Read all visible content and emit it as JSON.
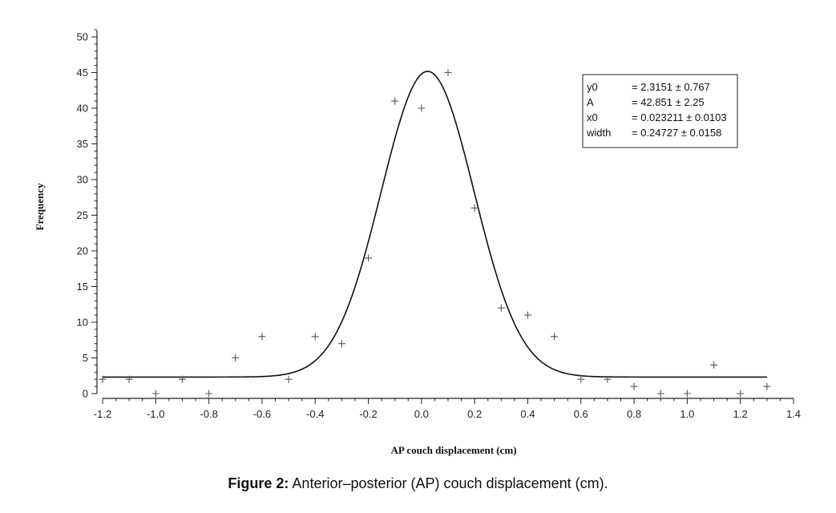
{
  "chart_data": {
    "type": "scatter",
    "xlabel": "AP couch displacement (cm)",
    "ylabel": "Frequency",
    "xlim": [
      -1.2,
      1.4
    ],
    "ylim": [
      0,
      52
    ],
    "x_ticks": [
      "-1.2",
      "-1.0",
      "-0.8",
      "-0.6",
      "-0.4",
      "-0.2",
      "0.0",
      "0.2",
      "0.4",
      "0.6",
      "0.8",
      "1.0",
      "1.2",
      "1.4"
    ],
    "x_tick_values": [
      -1.2,
      -1.0,
      -0.8,
      -0.6,
      -0.4,
      -0.2,
      0.0,
      0.2,
      0.4,
      0.6,
      0.8,
      1.0,
      1.2,
      1.4
    ],
    "y_ticks": [
      "0",
      "5",
      "10",
      "15",
      "20",
      "25",
      "30",
      "35",
      "40",
      "45",
      "50"
    ],
    "y_tick_values": [
      0,
      5,
      10,
      15,
      20,
      25,
      30,
      35,
      40,
      45,
      50
    ],
    "grid": false,
    "series": [
      {
        "kind": "points",
        "marker": "+",
        "x": [
          -1.2,
          -1.1,
          -1.0,
          -0.9,
          -0.8,
          -0.7,
          -0.6,
          -0.5,
          -0.4,
          -0.3,
          -0.2,
          -0.1,
          0.0,
          0.1,
          0.2,
          0.3,
          0.4,
          0.5,
          0.6,
          0.7,
          0.8,
          0.9,
          1.0,
          1.1,
          1.2,
          1.3
        ],
        "y": [
          2,
          2,
          0,
          2,
          0,
          5,
          8,
          2,
          8,
          7,
          19,
          41,
          40,
          45,
          26,
          12,
          11,
          8,
          2,
          2,
          1,
          0,
          0,
          4,
          0,
          1
        ]
      },
      {
        "kind": "gaussian-fit",
        "y0": 2.3151,
        "A": 42.851,
        "x0": 0.023211,
        "width": 0.24727,
        "x_range": [
          -1.2,
          1.3
        ]
      }
    ],
    "legend_position": "top-right",
    "legend_rows": [
      {
        "name": "y0",
        "value": "= 2.3151 ± 0.767"
      },
      {
        "name": "A",
        "value": "= 42.851 ± 2.25"
      },
      {
        "name": "x0",
        "value": "= 0.023211 ± 0.0103"
      },
      {
        "name": "width",
        "value": "= 0.24727 ± 0.0158"
      }
    ]
  },
  "caption": {
    "label": "Figure 2:",
    "text": " Anterior–posterior (AP) couch displacement (cm)."
  }
}
